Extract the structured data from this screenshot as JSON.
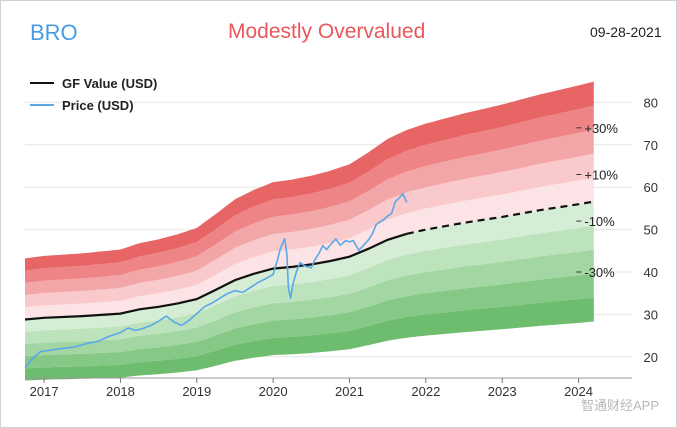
{
  "header": {
    "ticker": "BRO",
    "verdict": "Modestly Overvalued",
    "date": "09-28-2021"
  },
  "legend": {
    "gf_value": "GF Value (USD)",
    "price": "Price (USD)"
  },
  "watermark": "智通财经APP",
  "colors": {
    "ticker": "#4a9be0",
    "verdict": "#e8585a",
    "gf_line": "#111111",
    "price_line": "#5aa8e8"
  },
  "chart_data": {
    "type": "line",
    "xlim": [
      2016.75,
      2024.7
    ],
    "ylim": [
      15,
      90
    ],
    "x_ticks": [
      2017,
      2018,
      2019,
      2020,
      2021,
      2022,
      2023,
      2024
    ],
    "x_tick_labels": [
      "2017",
      "2018",
      "2019",
      "2020",
      "2021",
      "2022",
      "2023",
      "2024"
    ],
    "y_ticks": [
      20,
      30,
      40,
      50,
      60,
      70,
      80
    ],
    "y_tick_labels": [
      "20",
      "30",
      "40",
      "50",
      "60",
      "70",
      "80"
    ],
    "band_multipliers": [
      0.5,
      0.6,
      0.7,
      0.8,
      0.9,
      1.0,
      1.1,
      1.2,
      1.3,
      1.4,
      1.5
    ],
    "band_colors": [
      "#6ebc6e",
      "#86c886",
      "#a2d6a2",
      "#bde3bd",
      "#d5edd5",
      "#fce3e5",
      "#f9c9cc",
      "#f3a6a8",
      "#ee8485",
      "#e86566"
    ],
    "band_labels": [
      {
        "label": "+30%",
        "x": 2024.05,
        "y": 74
      },
      {
        "label": "+10%",
        "x": 2024.05,
        "y": 63
      },
      {
        "label": "-10%",
        "x": 2024.05,
        "y": 52
      },
      {
        "label": "-30%",
        "x": 2024.05,
        "y": 40
      }
    ],
    "series": [
      {
        "name": "GF Value (USD)",
        "style": "solid-then-dashed",
        "dash_from": 2021.75,
        "points": [
          [
            2016.75,
            28.8
          ],
          [
            2017.0,
            29.2
          ],
          [
            2017.5,
            29.6
          ],
          [
            2018.0,
            30.2
          ],
          [
            2018.25,
            31.2
          ],
          [
            2018.5,
            31.8
          ],
          [
            2018.75,
            32.6
          ],
          [
            2019.0,
            33.6
          ],
          [
            2019.25,
            35.8
          ],
          [
            2019.5,
            38.1
          ],
          [
            2019.75,
            39.6
          ],
          [
            2020.0,
            40.8
          ],
          [
            2020.25,
            41.2
          ],
          [
            2020.5,
            41.8
          ],
          [
            2020.75,
            42.6
          ],
          [
            2021.0,
            43.6
          ],
          [
            2021.25,
            45.5
          ],
          [
            2021.5,
            47.6
          ],
          [
            2021.75,
            49.0
          ],
          [
            2022.0,
            50.0
          ],
          [
            2022.5,
            51.6
          ],
          [
            2023.0,
            53.0
          ],
          [
            2023.5,
            54.6
          ],
          [
            2024.0,
            56.0
          ],
          [
            2024.2,
            56.6
          ]
        ]
      },
      {
        "name": "Price (USD)",
        "style": "solid",
        "points": [
          [
            2016.75,
            17.5
          ],
          [
            2016.85,
            19.6
          ],
          [
            2016.95,
            21.2
          ],
          [
            2017.1,
            21.6
          ],
          [
            2017.25,
            22.0
          ],
          [
            2017.4,
            22.3
          ],
          [
            2017.55,
            23.1
          ],
          [
            2017.7,
            23.6
          ],
          [
            2017.85,
            24.8
          ],
          [
            2018.0,
            25.7
          ],
          [
            2018.1,
            26.8
          ],
          [
            2018.2,
            26.2
          ],
          [
            2018.3,
            26.7
          ],
          [
            2018.4,
            27.4
          ],
          [
            2018.5,
            28.4
          ],
          [
            2018.6,
            29.6
          ],
          [
            2018.7,
            28.2
          ],
          [
            2018.8,
            27.4
          ],
          [
            2018.9,
            28.6
          ],
          [
            2019.0,
            30.2
          ],
          [
            2019.1,
            31.8
          ],
          [
            2019.2,
            32.7
          ],
          [
            2019.3,
            33.8
          ],
          [
            2019.4,
            34.9
          ],
          [
            2019.5,
            35.6
          ],
          [
            2019.6,
            35.2
          ],
          [
            2019.7,
            36.3
          ],
          [
            2019.8,
            37.5
          ],
          [
            2019.9,
            38.4
          ],
          [
            2020.0,
            39.4
          ],
          [
            2020.05,
            42.5
          ],
          [
            2020.1,
            45.8
          ],
          [
            2020.15,
            47.8
          ],
          [
            2020.18,
            44.2
          ],
          [
            2020.2,
            36.2
          ],
          [
            2020.23,
            33.8
          ],
          [
            2020.26,
            37.2
          ],
          [
            2020.3,
            39.8
          ],
          [
            2020.35,
            42.2
          ],
          [
            2020.42,
            41.4
          ],
          [
            2020.5,
            41.0
          ],
          [
            2020.55,
            43.0
          ],
          [
            2020.6,
            44.4
          ],
          [
            2020.65,
            46.2
          ],
          [
            2020.7,
            45.3
          ],
          [
            2020.75,
            46.4
          ],
          [
            2020.82,
            47.8
          ],
          [
            2020.88,
            46.3
          ],
          [
            2020.95,
            47.4
          ],
          [
            2021.0,
            47.1
          ],
          [
            2021.05,
            47.4
          ],
          [
            2021.12,
            45.1
          ],
          [
            2021.18,
            46.2
          ],
          [
            2021.25,
            47.6
          ],
          [
            2021.3,
            49.0
          ],
          [
            2021.35,
            51.2
          ],
          [
            2021.4,
            51.8
          ],
          [
            2021.45,
            52.4
          ],
          [
            2021.5,
            53.2
          ],
          [
            2021.55,
            53.8
          ],
          [
            2021.6,
            56.6
          ],
          [
            2021.65,
            57.4
          ],
          [
            2021.7,
            58.5
          ],
          [
            2021.73,
            57.2
          ],
          [
            2021.75,
            56.4
          ]
        ]
      }
    ]
  }
}
